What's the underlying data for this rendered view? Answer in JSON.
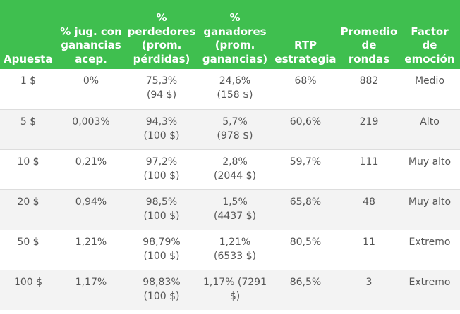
{
  "table": {
    "headers": [
      {
        "lines": [
          "Apuesta"
        ]
      },
      {
        "lines": [
          "% jug. con",
          "ganancias",
          "acep."
        ]
      },
      {
        "lines": [
          "%",
          "perdedores",
          "(prom.",
          "pérdidas)"
        ]
      },
      {
        "lines": [
          "%",
          "ganadores",
          "(prom.",
          "ganancias)"
        ]
      },
      {
        "lines": [
          "RTP",
          "estrategia"
        ]
      },
      {
        "lines": [
          "Promedio",
          "de",
          "rondas"
        ]
      },
      {
        "lines": [
          "Factor",
          "de",
          "emoción"
        ]
      }
    ],
    "rows": [
      {
        "bet": "1 $",
        "pct_acceptable": "0%",
        "losers": "75,3%",
        "avg_loss": "(94 $)",
        "winners": "24,6%",
        "avg_win": "(158 $)",
        "rtp": "68%",
        "avg_rounds": "882",
        "excitement": "Medio"
      },
      {
        "bet": "5 $",
        "pct_acceptable": "0,003%",
        "losers": "94,3%",
        "avg_loss": "(100 $)",
        "winners": "5,7%",
        "avg_win": "(978 $)",
        "rtp": "60,6%",
        "avg_rounds": "219",
        "excitement": "Alto"
      },
      {
        "bet": "10 $",
        "pct_acceptable": "0,21%",
        "losers": "97,2%",
        "avg_loss": "(100 $)",
        "winners": "2,8%",
        "avg_win": "(2044 $)",
        "rtp": "59,7%",
        "avg_rounds": "111",
        "excitement": "Muy alto"
      },
      {
        "bet": "20 $",
        "pct_acceptable": "0,94%",
        "losers": "98,5%",
        "avg_loss": "(100 $)",
        "winners": "1,5%",
        "avg_win": "(4437 $)",
        "rtp": "65,8%",
        "avg_rounds": "48",
        "excitement": "Muy alto"
      },
      {
        "bet": "50 $",
        "pct_acceptable": "1,21%",
        "losers": "98,79%",
        "avg_loss": "(100 $)",
        "winners": "1,21%",
        "avg_win": "(6533 $)",
        "rtp": "80,5%",
        "avg_rounds": "11",
        "excitement": "Extremo"
      },
      {
        "bet": "100 $",
        "pct_acceptable": "1,17%",
        "losers": "98,83%",
        "avg_loss": "(100 $)",
        "winners": "1,17% (7291",
        "avg_win": "$)",
        "rtp": "86,5%",
        "avg_rounds": "3",
        "excitement": "Extremo"
      }
    ]
  },
  "colors": {
    "header_bg": "#3fbf4f",
    "header_text": "#ffffff",
    "body_text": "#555555",
    "stripe": "#f3f3f3"
  }
}
